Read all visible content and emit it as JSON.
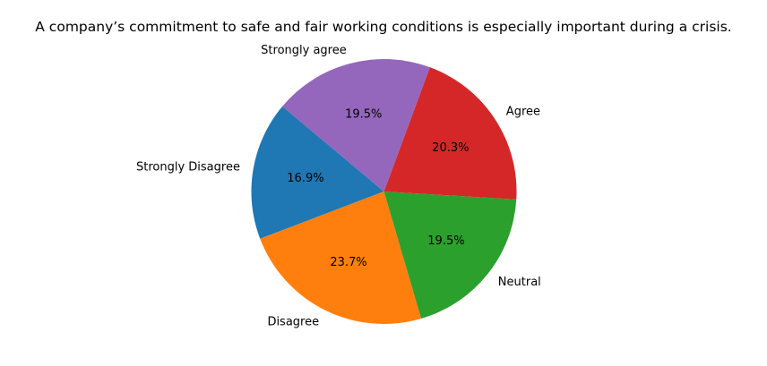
{
  "chart_data": {
    "type": "pie",
    "title": "A company’s commitment to safe and fair working conditions is especially important during a crisis.",
    "categories": [
      "Strongly Disagree",
      "Disagree",
      "Neutral",
      "Agree",
      "Strongly agree"
    ],
    "values": [
      16.9,
      23.7,
      19.5,
      20.3,
      19.5
    ],
    "value_labels": [
      "16.9%",
      "23.7%",
      "19.5%",
      "20.3%",
      "19.5%"
    ],
    "colors": [
      "#1f77b4",
      "#ff7f0e",
      "#2ca02c",
      "#d62728",
      "#9467bd"
    ],
    "start_angle_deg": 140,
    "direction": "counterclockwise",
    "legend": "none"
  }
}
